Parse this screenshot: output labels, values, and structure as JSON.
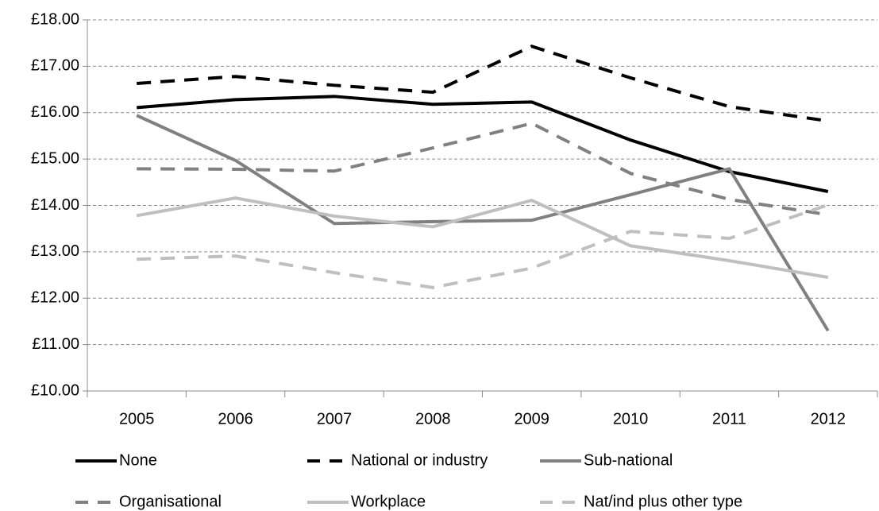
{
  "chart_data": {
    "type": "line",
    "categories": [
      "2005",
      "2006",
      "2007",
      "2008",
      "2009",
      "2010",
      "2011",
      "2012"
    ],
    "series": [
      {
        "name": "None",
        "color": "#000000",
        "dashed": false,
        "values": [
          16.11,
          16.28,
          16.35,
          16.18,
          16.23,
          15.41,
          14.73,
          14.3
        ]
      },
      {
        "name": "National or industry",
        "color": "#000000",
        "dashed": true,
        "values": [
          16.63,
          16.78,
          16.59,
          16.44,
          17.43,
          16.75,
          16.13,
          15.82
        ]
      },
      {
        "name": "Sub-national",
        "color": "#808080",
        "dashed": false,
        "values": [
          15.94,
          14.97,
          13.61,
          13.65,
          13.68,
          14.23,
          14.79,
          11.3
        ]
      },
      {
        "name": "Organisational",
        "color": "#808080",
        "dashed": true,
        "values": [
          14.79,
          14.78,
          14.74,
          15.24,
          15.77,
          14.69,
          14.13,
          13.8
        ]
      },
      {
        "name": "Workplace",
        "color": "#bfbfbf",
        "dashed": false,
        "values": [
          13.78,
          14.16,
          13.77,
          13.54,
          14.11,
          13.13,
          12.81,
          12.45
        ]
      },
      {
        "name": "Nat/ind plus other type",
        "color": "#bfbfbf",
        "dashed": true,
        "values": [
          12.84,
          12.91,
          12.55,
          12.23,
          12.65,
          13.44,
          13.29,
          14.01
        ]
      }
    ],
    "ylim": [
      10,
      18
    ],
    "yticks": [
      {
        "value": 10,
        "label": "£10.00"
      },
      {
        "value": 11,
        "label": "£11.00"
      },
      {
        "value": 12,
        "label": "£12.00"
      },
      {
        "value": 13,
        "label": "£13.00"
      },
      {
        "value": 14,
        "label": "£14.00"
      },
      {
        "value": 15,
        "label": "£15.00"
      },
      {
        "value": 16,
        "label": "£16.00"
      },
      {
        "value": 17,
        "label": "£17.00"
      },
      {
        "value": 18,
        "label": "£18.00"
      }
    ],
    "grid": true,
    "legend": "bottom"
  }
}
